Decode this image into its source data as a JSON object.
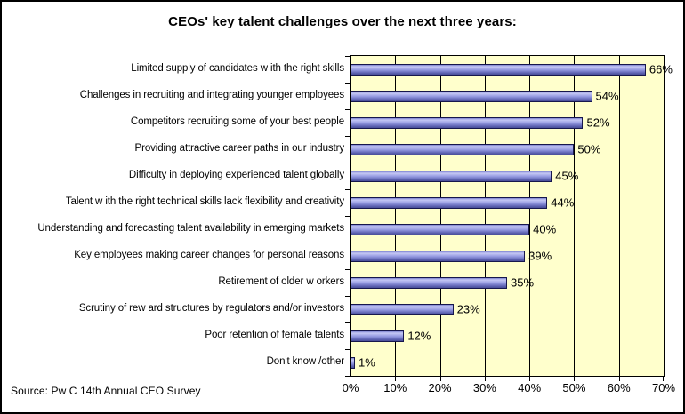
{
  "title": "CEOs' key talent challenges over the next three years:",
  "source": "Source: Pw C 14th Annual CEO Survey",
  "chart_data": {
    "type": "bar",
    "orientation": "horizontal",
    "title": "CEOs' key talent challenges over the next three years:",
    "categories": [
      "Limited supply of candidates w ith the right skills",
      "Challenges in recruiting and integrating younger employees",
      "Competitors recruiting some of your best people",
      "Providing attractive career paths in our industry",
      "Difficulty in deploying experienced talent globally",
      "Talent w ith the right technical skills lack flexibility and creativity",
      "Understanding and forecasting talent availability in emerging markets",
      "Key employees making career changes for personal reasons",
      "Retirement of older w orkers",
      "Scrutiny of rew ard structures by regulators and/or investors",
      "Poor retention of female talents",
      "Don't know /other"
    ],
    "values": [
      66,
      54,
      52,
      50,
      45,
      44,
      40,
      39,
      35,
      23,
      12,
      1
    ],
    "value_label_suffix": "%",
    "xlabel": "",
    "ylabel": "",
    "xlim": [
      0,
      70
    ],
    "x_ticks": [
      "0%",
      "10%",
      "20%",
      "30%",
      "40%",
      "50%",
      "60%",
      "70%"
    ],
    "grid": "vertical",
    "legend": "none",
    "colors": {
      "figure_background": "#FFFFFF",
      "figure_border": "#000000",
      "plot_background": "#FFFFCC",
      "gridline": "#000000",
      "bar_highlight": "#C6C9F5",
      "bar_mid": "#9398E0",
      "bar_shadow": "#484D97",
      "bar_border": "#17174D",
      "text": "#000000"
    }
  }
}
